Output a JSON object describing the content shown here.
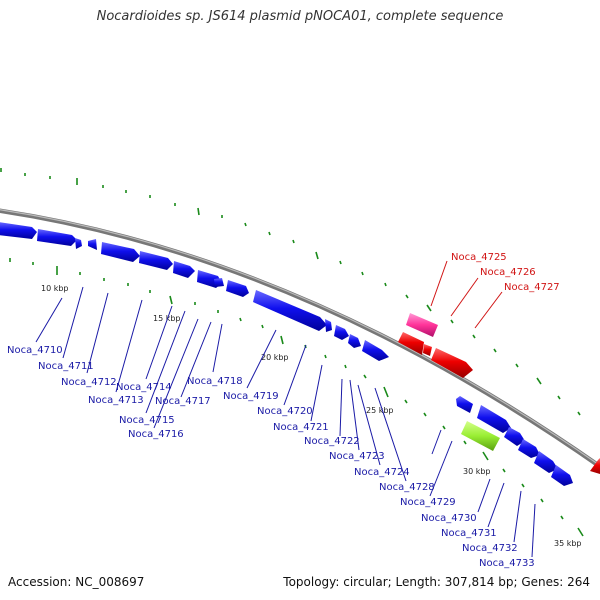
{
  "title": "Nocardioides sp. JS614 plasmid pNOCA01, complete sequence",
  "footer": {
    "accession": "Accession: NC_008697",
    "topology": "Topology: circular; Length: 307,814 bp; Genes: 264"
  },
  "colors": {
    "forward_gene": "#0000ee",
    "tRNA": "#ff3399",
    "reverse_red": "#ee0000",
    "rRNA_green": "#99ee33",
    "tick": "#1a8a1a",
    "backbone": "#888888"
  },
  "scale_labels": [
    "10 kbp",
    "15 kbp",
    "20 kbp",
    "25 kbp",
    "30 kbp",
    "35 kbp"
  ],
  "gene_labels": {
    "noca_4710": "Noca_4710",
    "noca_4711": "Noca_4711",
    "noca_4712": "Noca_4712",
    "noca_4713": "Noca_4713",
    "noca_4714": "Noca_4714",
    "noca_4715": "Noca_4715",
    "noca_4716": "Noca_4716",
    "noca_4717": "Noca_4717",
    "noca_4718": "Noca_4718",
    "noca_4719": "Noca_4719",
    "noca_4720": "Noca_4720",
    "noca_4721": "Noca_4721",
    "noca_4722": "Noca_4722",
    "noca_4723": "Noca_4723",
    "noca_4724": "Noca_4724",
    "noca_4725": "Noca_4725",
    "noca_4726": "Noca_4726",
    "noca_4727": "Noca_4727",
    "noca_4728": "Noca_4728",
    "noca_4729": "Noca_4729",
    "noca_4730": "Noca_4730",
    "noca_4731": "Noca_4731",
    "noca_4732": "Noca_4732",
    "noca_4733": "Noca_4733"
  }
}
